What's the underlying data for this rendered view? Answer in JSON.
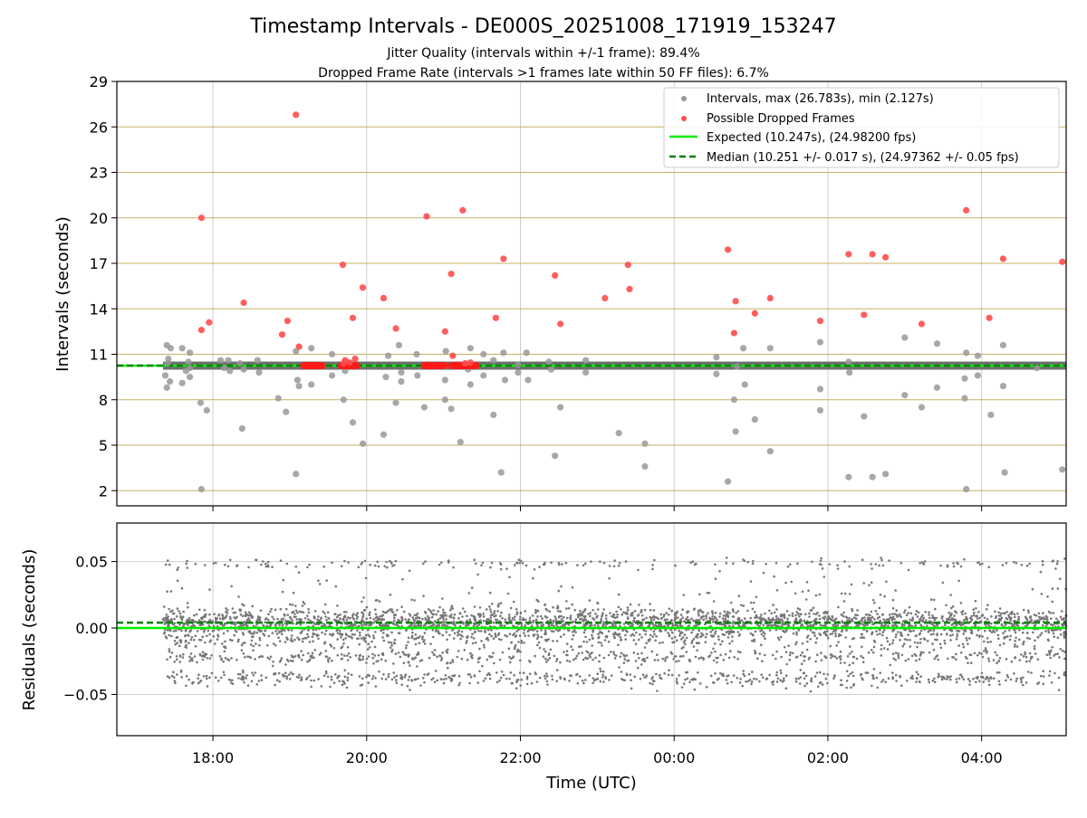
{
  "chart_data": [
    {
      "type": "scatter",
      "title": "Timestamp Intervals - DE000S_20251008_171919_153247",
      "subtitle_lines": [
        "Jitter Quality (intervals within +/-1 frame): 89.4%",
        "Dropped Frame Rate (intervals >1 frames late within 50 FF files): 6.7%"
      ],
      "xlabel": "",
      "ylabel": "Intervals (seconds)",
      "x_unit": "hours since 00:00 UTC (Oct 8 -> Oct 9)",
      "xlim": [
        16.75,
        29.1
      ],
      "ylim": [
        1,
        29
      ],
      "yticks": [
        2,
        5,
        8,
        11,
        14,
        17,
        20,
        23,
        26,
        29
      ],
      "ytick_labels": [
        "2",
        "5",
        "8",
        "11",
        "14",
        "17",
        "20",
        "23",
        "26",
        "29"
      ],
      "legend": {
        "position": "top-right",
        "entries": [
          "Intervals, max (26.783s), min (2.127s)",
          "Possible Dropped Frames",
          "Expected (10.247s), (24.98200 fps)",
          "Median (10.251 +/- 0.017 s), (24.97362 +/- 0.05 fps)"
        ]
      },
      "colors": {
        "intervals": "#999999",
        "dropped": "#ff4d4d",
        "expected": "#00ee00",
        "median": "#008000",
        "grid": "#c9b066"
      },
      "expected": 10.247,
      "median": 10.251,
      "band_interval": 10.25,
      "band_x_range": [
        17.35,
        29.1
      ],
      "series": [
        {
          "name": "Intervals",
          "points": [
            [
              17.4,
              11.6
            ],
            [
              17.45,
              11.4
            ],
            [
              17.42,
              10.7
            ],
            [
              17.41,
              10.4
            ],
            [
              17.38,
              9.6
            ],
            [
              17.44,
              9.2
            ],
            [
              17.4,
              8.8
            ],
            [
              17.6,
              11.4
            ],
            [
              17.7,
              11.1
            ],
            [
              17.68,
              10.5
            ],
            [
              17.7,
              10.1
            ],
            [
              17.65,
              9.9
            ],
            [
              17.7,
              9.5
            ],
            [
              17.6,
              9.1
            ],
            [
              17.84,
              7.8
            ],
            [
              17.92,
              7.3
            ],
            [
              17.85,
              2.1
            ],
            [
              18.1,
              10.6
            ],
            [
              18.2,
              10.6
            ],
            [
              18.15,
              10.1
            ],
            [
              18.22,
              9.9
            ],
            [
              18.35,
              10.4
            ],
            [
              18.4,
              10.0
            ],
            [
              18.38,
              6.1
            ],
            [
              18.58,
              10.6
            ],
            [
              18.6,
              9.8
            ],
            [
              18.85,
              8.1
            ],
            [
              18.95,
              7.2
            ],
            [
              19.08,
              11.2
            ],
            [
              19.1,
              9.3
            ],
            [
              19.12,
              8.9
            ],
            [
              19.08,
              3.1
            ],
            [
              19.28,
              11.4
            ],
            [
              19.28,
              9.0
            ],
            [
              19.55,
              11.0
            ],
            [
              19.55,
              9.6
            ],
            [
              19.72,
              9.9
            ],
            [
              19.7,
              8.0
            ],
            [
              19.82,
              6.5
            ],
            [
              19.95,
              5.1
            ],
            [
              20.22,
              5.7
            ],
            [
              20.28,
              10.9
            ],
            [
              20.25,
              9.5
            ],
            [
              20.42,
              11.6
            ],
            [
              20.45,
              9.8
            ],
            [
              20.38,
              7.8
            ],
            [
              20.45,
              9.2
            ],
            [
              20.65,
              11.0
            ],
            [
              20.66,
              9.6
            ],
            [
              20.75,
              7.5
            ],
            [
              21.03,
              11.2
            ],
            [
              21.02,
              9.3
            ],
            [
              21.02,
              8.0
            ],
            [
              21.1,
              7.4
            ],
            [
              21.22,
              5.2
            ],
            [
              21.35,
              11.4
            ],
            [
              21.32,
              10.0
            ],
            [
              21.35,
              9.0
            ],
            [
              21.52,
              11.0
            ],
            [
              21.52,
              9.6
            ],
            [
              21.65,
              10.6
            ],
            [
              21.65,
              7.0
            ],
            [
              21.78,
              11.1
            ],
            [
              21.8,
              9.3
            ],
            [
              21.75,
              3.2
            ],
            [
              21.97,
              10.3
            ],
            [
              21.97,
              9.8
            ],
            [
              22.08,
              11.1
            ],
            [
              22.1,
              9.3
            ],
            [
              22.37,
              10.5
            ],
            [
              22.4,
              10.0
            ],
            [
              22.45,
              4.3
            ],
            [
              22.52,
              7.5
            ],
            [
              22.85,
              10.6
            ],
            [
              22.85,
              9.8
            ],
            [
              23.28,
              5.8
            ],
            [
              23.62,
              5.1
            ],
            [
              23.62,
              3.6
            ],
            [
              24.55,
              10.8
            ],
            [
              24.55,
              9.7
            ],
            [
              24.7,
              2.6
            ],
            [
              24.78,
              8.0
            ],
            [
              24.82,
              10.2
            ],
            [
              24.8,
              5.9
            ],
            [
              24.9,
              11.4
            ],
            [
              24.92,
              9.0
            ],
            [
              25.05,
              6.7
            ],
            [
              25.25,
              11.4
            ],
            [
              25.25,
              4.6
            ],
            [
              25.9,
              11.8
            ],
            [
              25.9,
              8.7
            ],
            [
              25.9,
              7.3
            ],
            [
              26.27,
              10.5
            ],
            [
              26.28,
              9.8
            ],
            [
              26.27,
              2.9
            ],
            [
              26.47,
              6.9
            ],
            [
              26.58,
              2.9
            ],
            [
              26.75,
              3.1
            ],
            [
              27.0,
              12.1
            ],
            [
              27.0,
              8.3
            ],
            [
              27.22,
              7.5
            ],
            [
              27.42,
              11.7
            ],
            [
              27.42,
              8.8
            ],
            [
              27.8,
              11.1
            ],
            [
              27.78,
              9.4
            ],
            [
              27.78,
              8.1
            ],
            [
              27.8,
              2.1
            ],
            [
              27.95,
              10.9
            ],
            [
              27.95,
              9.6
            ],
            [
              28.12,
              7.0
            ],
            [
              28.28,
              11.6
            ],
            [
              28.28,
              8.9
            ],
            [
              28.3,
              3.2
            ],
            [
              28.72,
              10.1
            ],
            [
              29.05,
              3.4
            ]
          ]
        },
        {
          "name": "Possible Dropped Frames",
          "points": [
            [
              17.85,
              20.0
            ],
            [
              17.85,
              12.6
            ],
            [
              17.95,
              13.1
            ],
            [
              18.4,
              14.4
            ],
            [
              18.9,
              12.3
            ],
            [
              18.97,
              13.2
            ],
            [
              19.08,
              26.8
            ],
            [
              19.12,
              11.5
            ],
            [
              19.69,
              16.9
            ],
            [
              19.82,
              13.4
            ],
            [
              19.95,
              15.4
            ],
            [
              20.22,
              14.7
            ],
            [
              20.38,
              12.7
            ],
            [
              20.78,
              20.1
            ],
            [
              21.02,
              12.5
            ],
            [
              21.1,
              16.3
            ],
            [
              21.25,
              20.5
            ],
            [
              21.12,
              10.9
            ],
            [
              21.68,
              13.4
            ],
            [
              21.78,
              17.3
            ],
            [
              22.45,
              16.2
            ],
            [
              22.52,
              13.0
            ],
            [
              23.1,
              14.7
            ],
            [
              23.4,
              16.9
            ],
            [
              23.42,
              15.3
            ],
            [
              24.7,
              17.9
            ],
            [
              24.78,
              12.4
            ],
            [
              24.8,
              14.5
            ],
            [
              25.05,
              13.7
            ],
            [
              25.25,
              14.7
            ],
            [
              25.9,
              13.2
            ],
            [
              26.27,
              17.6
            ],
            [
              26.47,
              13.6
            ],
            [
              26.58,
              17.6
            ],
            [
              26.75,
              17.4
            ],
            [
              27.22,
              13.0
            ],
            [
              27.8,
              20.5
            ],
            [
              28.1,
              13.4
            ],
            [
              28.28,
              17.3
            ],
            [
              29.05,
              17.1
            ],
            [
              19.72,
              10.6
            ],
            [
              19.85,
              10.7
            ],
            [
              19.78,
              10.45
            ],
            [
              19.7,
              10.4
            ],
            [
              21.35,
              10.45
            ],
            [
              21.28,
              10.4
            ]
          ]
        }
      ],
      "dense_clusters": [
        [
          19.18,
          19.42
        ],
        [
          19.67,
          19.88
        ],
        [
          20.75,
          21.02
        ],
        [
          21.1,
          21.42
        ]
      ]
    },
    {
      "type": "scatter",
      "title": "",
      "xlabel": "Time (UTC)",
      "ylabel": "Residuals (seconds)",
      "xlim": [
        16.75,
        29.1
      ],
      "ylim": [
        -0.081,
        0.079
      ],
      "yticks": [
        0.05,
        0.0,
        -0.05
      ],
      "ytick_labels": [
        "0.05",
        "0.00",
        "−0.05"
      ],
      "xticks": [
        18,
        20,
        22,
        24,
        26,
        28
      ],
      "xtick_labels": [
        "18:00",
        "20:00",
        "22:00",
        "00:00",
        "02:00",
        "04:00"
      ],
      "expected_residual": 0.0,
      "median_residual": 0.004,
      "x_range": [
        17.35,
        29.1
      ],
      "residual_bands": [
        {
          "center": 0.004,
          "spread": 0.011,
          "share": 0.55
        },
        {
          "center": -0.008,
          "spread": 0.012,
          "share": 0.14
        },
        {
          "center": -0.022,
          "spread": 0.005,
          "share": 0.1
        },
        {
          "center": -0.038,
          "spread": 0.006,
          "share": 0.13
        },
        {
          "center": 0.048,
          "spread": 0.004,
          "share": 0.04
        },
        {
          "center": 0.024,
          "spread": 0.02,
          "share": 0.04
        }
      ],
      "point_count": 4200,
      "colors": {
        "points": "#777777",
        "expected": "#00ee00",
        "median": "#008000"
      }
    }
  ]
}
